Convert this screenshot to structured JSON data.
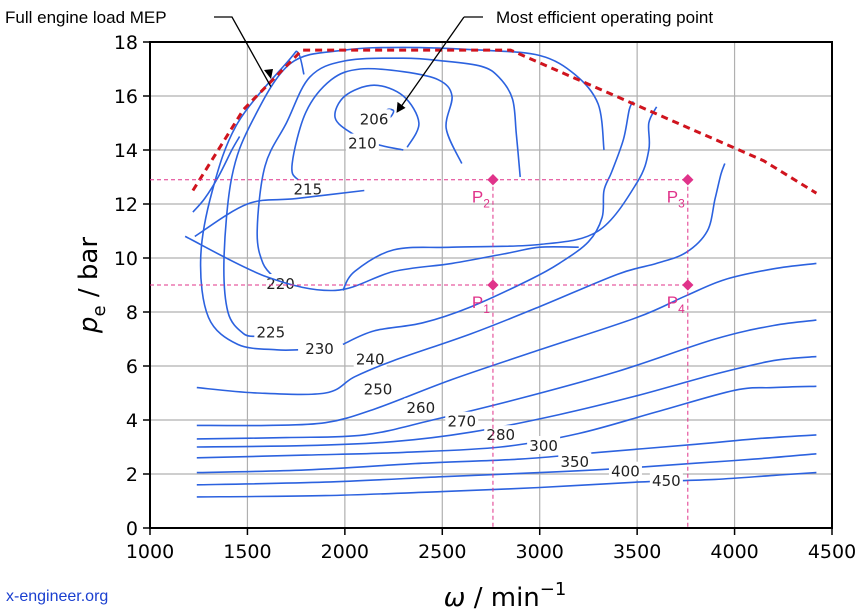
{
  "chart_data": {
    "type": "contour",
    "title": "",
    "xlabel": "ω / min",
    "xlabel_sup": "−1",
    "ylabel": "p",
    "ylabel_sub": "e",
    "ylabel_unit": " / bar",
    "xlim": [
      1000,
      4500
    ],
    "ylim": [
      0,
      18
    ],
    "x_ticks": [
      1000,
      1500,
      2000,
      2500,
      3000,
      3500,
      4000,
      4500
    ],
    "x_tick_labels": [
      "1000",
      "1500",
      "2000",
      "2500",
      "3000",
      "3500",
      "4000",
      "4500"
    ],
    "y_ticks": [
      0,
      2,
      4,
      6,
      8,
      10,
      12,
      14,
      16,
      18
    ],
    "y_tick_labels": [
      "0",
      "2",
      "4",
      "6",
      "8",
      "10",
      "12",
      "14",
      "16",
      "18"
    ],
    "grid": true,
    "full_load_curve": {
      "name": "Full engine load MEP",
      "color": "#d0141e",
      "points": [
        [
          1220,
          12.5
        ],
        [
          1480,
          15.5
        ],
        [
          1780,
          17.7
        ],
        [
          2850,
          17.7
        ],
        [
          4150,
          13.6
        ],
        [
          4420,
          12.4
        ]
      ]
    },
    "contour_color": "#2c62df",
    "contours": [
      {
        "label": "206",
        "label_at": [
          2150,
          15.1
        ],
        "closed": true,
        "points": [
          [
            2200,
            15.3
          ],
          [
            2220,
            15.5
          ],
          [
            2250,
            15.45
          ],
          [
            2230,
            15.2
          ]
        ]
      },
      {
        "label": "210",
        "label_at": [
          2090,
          14.2
        ],
        "closed": false,
        "points": [
          [
            2300,
            14.0
          ],
          [
            2170,
            14.2
          ],
          [
            2040,
            14.6
          ],
          [
            1950,
            15.2
          ],
          [
            2000,
            16.0
          ],
          [
            2150,
            16.4
          ],
          [
            2300,
            16.0
          ],
          [
            2380,
            15.0
          ],
          [
            2320,
            14.1
          ]
        ]
      },
      {
        "label": "215",
        "label_at": [
          1810,
          12.5
        ],
        "closed": false,
        "points": [
          [
            2600,
            13.5
          ],
          [
            2520,
            14.8
          ],
          [
            2550,
            16.0
          ],
          [
            2480,
            16.6
          ],
          [
            2300,
            16.9
          ],
          [
            2080,
            17.0
          ],
          [
            1930,
            16.6
          ],
          [
            1800,
            15.4
          ],
          [
            1730,
            13.5
          ],
          [
            1760,
            12.9
          ],
          [
            1880,
            12.6
          ]
        ]
      },
      {
        "label": "220",
        "label_at": [
          1670,
          9.0
        ],
        "closed": false,
        "points": [
          [
            2900,
            13.0
          ],
          [
            2880,
            14.6
          ],
          [
            2860,
            15.9
          ],
          [
            2790,
            16.7
          ],
          [
            2700,
            17.1
          ],
          [
            2500,
            17.3
          ],
          [
            2300,
            17.4
          ],
          [
            2000,
            17.3
          ],
          [
            1820,
            16.7
          ],
          [
            1700,
            15.0
          ],
          [
            1590,
            13.4
          ],
          [
            1550,
            11.0
          ],
          [
            1580,
            9.8
          ],
          [
            1650,
            9.2
          ]
        ]
      },
      {
        "label": "225",
        "label_at": [
          1620,
          7.2
        ],
        "closed": false,
        "points": [
          [
            3330,
            14.0
          ],
          [
            3300,
            15.7
          ],
          [
            3180,
            16.8
          ],
          [
            3000,
            17.5
          ],
          [
            2700,
            17.7
          ],
          [
            2300,
            17.8
          ],
          [
            2000,
            17.7
          ],
          [
            1720,
            17.2
          ],
          [
            1520,
            15.0
          ],
          [
            1420,
            13.0
          ],
          [
            1380,
            10.0
          ],
          [
            1400,
            8.0
          ],
          [
            1480,
            7.2
          ],
          [
            1550,
            7.1
          ]
        ]
      },
      {
        "label": "230",
        "label_at": [
          1870,
          6.6
        ],
        "closed": false,
        "points": [
          [
            1790,
            16.8
          ],
          [
            1760,
            17.6
          ],
          [
            1710,
            17.3
          ],
          [
            1450,
            15.0
          ],
          [
            1320,
            12.5
          ],
          [
            1260,
            10.0
          ],
          [
            1300,
            7.8
          ],
          [
            1450,
            6.8
          ],
          [
            1650,
            6.6
          ],
          [
            1760,
            6.6
          ]
        ]
      },
      {
        "label": "",
        "label_at": null,
        "closed": false,
        "points": [
          [
            1220,
            11.7
          ],
          [
            1280,
            12.2
          ],
          [
            1350,
            13.0
          ],
          [
            1420,
            14.0
          ],
          [
            1460,
            14.5
          ]
        ]
      },
      {
        "label": "",
        "label_at": null,
        "closed": false,
        "points": [
          [
            1990,
            6.8
          ],
          [
            2150,
            7.3
          ],
          [
            2400,
            7.6
          ],
          [
            2650,
            8.2
          ],
          [
            2950,
            9.2
          ],
          [
            3100,
            9.8
          ],
          [
            3250,
            10.6
          ],
          [
            3320,
            11.5
          ],
          [
            3330,
            12.5
          ],
          [
            3370,
            13.2
          ],
          [
            3430,
            14.4
          ],
          [
            3460,
            15.5
          ],
          [
            3480,
            15.8
          ]
        ]
      },
      {
        "label": "",
        "label_at": null,
        "closed": false,
        "points": [
          [
            1990,
            8.8
          ],
          [
            2050,
            9.5
          ],
          [
            2250,
            10.3
          ],
          [
            2550,
            10.4
          ],
          [
            3000,
            10.5
          ],
          [
            3300,
            11.0
          ],
          [
            3500,
            12.8
          ],
          [
            3560,
            14.0
          ],
          [
            3560,
            15.0
          ],
          [
            3600,
            15.6
          ]
        ]
      },
      {
        "label": "",
        "label_at": null,
        "closed": false,
        "points": [
          [
            1230,
            10.8
          ],
          [
            1500,
            12.0
          ],
          [
            1750,
            12.2
          ],
          [
            2100,
            12.5
          ]
        ]
      },
      {
        "label": "240",
        "label_at": [
          2130,
          6.2
        ],
        "closed": false,
        "points": [
          [
            1180,
            10.8
          ],
          [
            1600,
            9.3
          ],
          [
            1950,
            8.8
          ],
          [
            2250,
            9.5
          ],
          [
            2550,
            9.8
          ],
          [
            2850,
            10.2
          ],
          [
            3000,
            10.4
          ],
          [
            3200,
            10.4
          ]
        ]
      },
      {
        "label": "250",
        "label_at": [
          2170,
          5.1
        ],
        "closed": false,
        "points": [
          [
            1240,
            5.2
          ],
          [
            1550,
            5.0
          ],
          [
            1900,
            5.0
          ],
          [
            2050,
            5.6
          ],
          [
            2250,
            6.2
          ],
          [
            2650,
            7.2
          ],
          [
            3000,
            8.2
          ],
          [
            3400,
            9.4
          ],
          [
            3600,
            9.8
          ],
          [
            3750,
            10.2
          ],
          [
            3860,
            11.0
          ],
          [
            3900,
            12.2
          ],
          [
            3930,
            13.1
          ],
          [
            3950,
            13.5
          ]
        ]
      },
      {
        "label": "260",
        "label_at": [
          2390,
          4.4
        ],
        "closed": false,
        "points": [
          [
            1240,
            3.8
          ],
          [
            1600,
            3.8
          ],
          [
            1900,
            3.9
          ],
          [
            2150,
            4.4
          ],
          [
            2550,
            5.5
          ],
          [
            3000,
            6.6
          ],
          [
            3500,
            7.8
          ],
          [
            3750,
            8.6
          ],
          [
            3950,
            9.2
          ],
          [
            4200,
            9.6
          ],
          [
            4420,
            9.8
          ]
        ]
      },
      {
        "label": "270",
        "label_at": [
          2600,
          3.9
        ],
        "closed": false,
        "points": [
          [
            1240,
            3.3
          ],
          [
            1700,
            3.35
          ],
          [
            2100,
            3.45
          ],
          [
            2450,
            4.0
          ],
          [
            2900,
            4.8
          ],
          [
            3400,
            5.8
          ],
          [
            3900,
            7.0
          ],
          [
            4200,
            7.5
          ],
          [
            4420,
            7.7
          ]
        ]
      },
      {
        "label": "280",
        "label_at": [
          2800,
          3.4
        ],
        "closed": false,
        "points": [
          [
            1240,
            3.0
          ],
          [
            1800,
            3.05
          ],
          [
            2250,
            3.2
          ],
          [
            2650,
            3.55
          ],
          [
            3100,
            4.2
          ],
          [
            3500,
            4.9
          ],
          [
            3900,
            5.7
          ],
          [
            4200,
            6.2
          ],
          [
            4420,
            6.35
          ]
        ]
      },
      {
        "label": "300",
        "label_at": [
          3020,
          3.0
        ],
        "closed": false,
        "points": [
          [
            1240,
            2.6
          ],
          [
            1800,
            2.7
          ],
          [
            2300,
            2.8
          ],
          [
            2800,
            3.0
          ],
          [
            3200,
            3.5
          ],
          [
            3600,
            4.3
          ],
          [
            4000,
            5.1
          ],
          [
            4200,
            5.2
          ],
          [
            4420,
            5.25
          ]
        ]
      },
      {
        "label": "350",
        "label_at": [
          3180,
          2.4
        ],
        "closed": false,
        "points": [
          [
            1240,
            2.05
          ],
          [
            1800,
            2.15
          ],
          [
            2400,
            2.4
          ],
          [
            2900,
            2.55
          ],
          [
            3300,
            2.8
          ],
          [
            3800,
            3.1
          ],
          [
            4100,
            3.3
          ],
          [
            4420,
            3.45
          ]
        ]
      },
      {
        "label": "400",
        "label_at": [
          3440,
          2.05
        ],
        "closed": false,
        "points": [
          [
            1240,
            1.6
          ],
          [
            1900,
            1.7
          ],
          [
            2500,
            1.9
          ],
          [
            3000,
            2.05
          ],
          [
            3400,
            2.2
          ],
          [
            3800,
            2.4
          ],
          [
            4100,
            2.55
          ],
          [
            4420,
            2.75
          ]
        ]
      },
      {
        "label": "450",
        "label_at": [
          3650,
          1.7
        ],
        "closed": false,
        "points": [
          [
            1240,
            1.15
          ],
          [
            1900,
            1.2
          ],
          [
            2500,
            1.35
          ],
          [
            3000,
            1.5
          ],
          [
            3500,
            1.7
          ],
          [
            3900,
            1.8
          ],
          [
            4200,
            1.95
          ],
          [
            4420,
            2.05
          ]
        ]
      }
    ],
    "operating_points": [
      {
        "name": "P",
        "sub": "1",
        "x": 2760,
        "y": 9.0
      },
      {
        "name": "P",
        "sub": "2",
        "x": 2760,
        "y": 12.9
      },
      {
        "name": "P",
        "sub": "3",
        "x": 3760,
        "y": 12.9
      },
      {
        "name": "P",
        "sub": "4",
        "x": 3760,
        "y": 9.0
      }
    ],
    "operating_point_color": "#e0338a",
    "annotations": [
      {
        "text": "Full engine load MEP",
        "target": [
          1630,
          16.5
        ]
      },
      {
        "text": "Most efficient operating point",
        "target": [
          2260,
          15.3
        ]
      }
    ]
  },
  "credit": "x-engineer.org"
}
